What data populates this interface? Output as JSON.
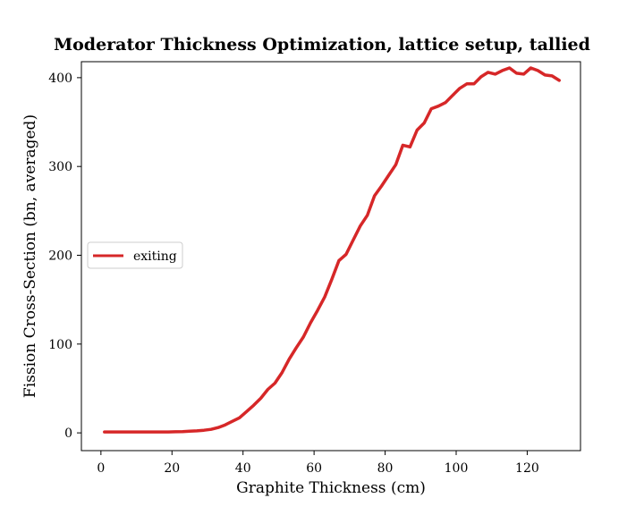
{
  "chart_data": {
    "type": "line",
    "title": "Moderator Thickness Optimization, lattice setup, tallied",
    "xlabel": "Graphite Thickness (cm)",
    "ylabel": "Fission Cross-Section (bn, averaged)",
    "xlim": [
      -5.5,
      135
    ],
    "ylim": [
      -20,
      418
    ],
    "xticks": [
      0,
      20,
      40,
      60,
      80,
      100,
      120
    ],
    "yticks": [
      0,
      100,
      200,
      300,
      400
    ],
    "grid": false,
    "legend_position": "center-left",
    "series": [
      {
        "name": "exiting",
        "color": "#d62728",
        "x": [
          1,
          3,
          5,
          7,
          9,
          11,
          13,
          15,
          17,
          19,
          21,
          23,
          25,
          27,
          29,
          31,
          33,
          35,
          37,
          39,
          41,
          43,
          45,
          47,
          49,
          51,
          53,
          55,
          57,
          59,
          61,
          63,
          65,
          67,
          69,
          71,
          73,
          75,
          77,
          79,
          81,
          83,
          85,
          87,
          89,
          91,
          93,
          95,
          97,
          99,
          101,
          103,
          105,
          107,
          109,
          111,
          113,
          115,
          117,
          119,
          121,
          123,
          125,
          127,
          129
        ],
        "y": [
          1,
          1,
          1,
          1,
          1,
          1,
          1,
          1,
          1,
          1,
          1.2,
          1.4,
          1.8,
          2.3,
          3,
          4,
          6,
          9,
          13,
          17,
          24,
          31,
          39,
          49,
          56,
          68,
          83,
          96,
          108,
          124,
          138,
          153,
          173,
          194,
          201,
          217,
          233,
          245,
          267,
          278,
          290,
          302,
          324,
          322,
          341,
          349,
          365,
          368,
          372,
          380,
          388,
          393,
          393,
          401,
          406,
          404,
          408,
          411,
          405,
          404,
          411,
          408,
          403,
          402,
          397
        ]
      }
    ]
  }
}
